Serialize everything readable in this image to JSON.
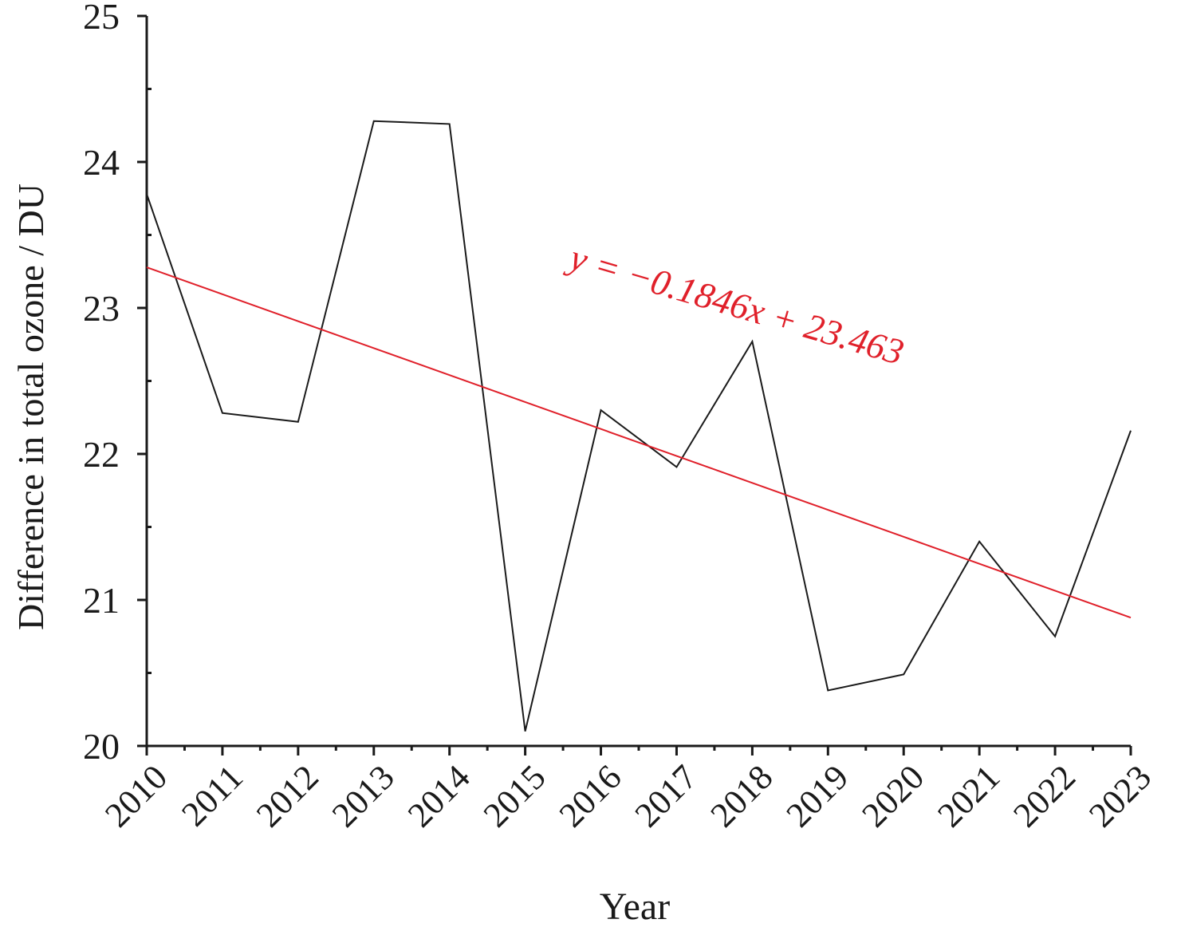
{
  "chart_data": {
    "type": "line",
    "title": "",
    "xlabel": "Year",
    "ylabel": "Difference in total ozone / DU",
    "categories": [
      "2010",
      "2011",
      "2012",
      "2013",
      "2014",
      "2015",
      "2016",
      "2017",
      "2018",
      "2019",
      "2020",
      "2021",
      "2022",
      "2023"
    ],
    "series": [
      {
        "values": [
          23.78,
          22.28,
          22.22,
          24.28,
          24.26,
          20.1,
          22.3,
          21.91,
          22.77,
          20.38,
          20.49,
          21.4,
          20.75,
          22.16
        ],
        "color": "#1a1a1a"
      }
    ],
    "trendline": {
      "slope": -0.1846,
      "intercept": 23.463,
      "x_index_start": 1,
      "color": "#e0202a",
      "label": "y = −0.1846x + 23.463"
    },
    "ylim": [
      20,
      25
    ],
    "yticks": [
      "20",
      "21",
      "22",
      "23",
      "24",
      "25"
    ],
    "grid": false,
    "legend": "none"
  }
}
